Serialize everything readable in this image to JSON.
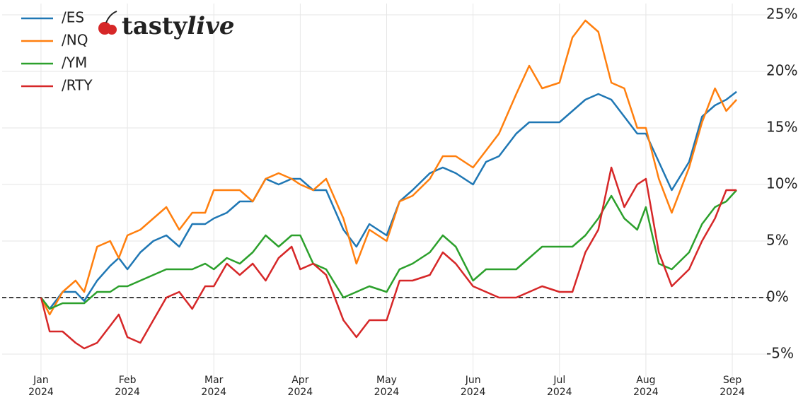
{
  "chart_data": {
    "type": "line",
    "logo": [
      "tasty",
      "live"
    ],
    "x": [
      0,
      0.1,
      0.25,
      0.4,
      0.5,
      0.65,
      0.8,
      0.9,
      1.0,
      1.15,
      1.3,
      1.45,
      1.6,
      1.75,
      1.9,
      2.0,
      2.15,
      2.3,
      2.45,
      2.6,
      2.75,
      2.9,
      3.0,
      3.15,
      3.3,
      3.5,
      3.65,
      3.8,
      4.0,
      4.15,
      4.3,
      4.5,
      4.65,
      4.8,
      5.0,
      5.15,
      5.3,
      5.5,
      5.65,
      5.8,
      6.0,
      6.15,
      6.3,
      6.45,
      6.6,
      6.75,
      6.9,
      7.0,
      7.15,
      7.3,
      7.5,
      7.65,
      7.8,
      7.93,
      8.05
    ],
    "series": [
      {
        "name": "/ES",
        "color": "#1f77b4",
        "values": [
          0,
          -1,
          0.5,
          0.5,
          -0.3,
          1.5,
          2.8,
          3.5,
          2.5,
          4,
          5,
          5.5,
          4.5,
          6.5,
          6.5,
          7,
          7.5,
          8.5,
          8.5,
          10.5,
          10,
          10.5,
          10.5,
          9.5,
          9.5,
          6,
          4.5,
          6.5,
          5.5,
          8.5,
          9.5,
          11,
          11.5,
          11,
          10,
          12,
          12.5,
          14.5,
          15.5,
          15.5,
          15.5,
          16.5,
          17.5,
          18,
          17.5,
          16,
          14.5,
          14.5,
          12,
          9.5,
          12,
          16,
          17,
          17.5,
          18.2
        ]
      },
      {
        "name": "/NQ",
        "color": "#ff7f0e",
        "values": [
          0,
          -1.5,
          0.5,
          1.5,
          0.5,
          4.5,
          5,
          3.5,
          5.5,
          6,
          7,
          8,
          6,
          7.5,
          7.5,
          9.5,
          9.5,
          9.5,
          8.5,
          10.5,
          11,
          10.5,
          10,
          9.5,
          10.5,
          7,
          3,
          6,
          5,
          8.5,
          9,
          10.5,
          12.5,
          12.5,
          11.5,
          13,
          14.5,
          18,
          20.5,
          18.5,
          19,
          23,
          24.5,
          23.5,
          19,
          18.5,
          15,
          15,
          10.5,
          7.5,
          11.5,
          15.5,
          18.5,
          16.5,
          17.5
        ]
      },
      {
        "name": "/YM",
        "color": "#2ca02c",
        "values": [
          0,
          -1,
          -0.5,
          -0.5,
          -0.5,
          0.5,
          0.5,
          1,
          1,
          1.5,
          2,
          2.5,
          2.5,
          2.5,
          3,
          2.5,
          3.5,
          3,
          4,
          5.5,
          4.5,
          5.5,
          5.5,
          3,
          2.5,
          0,
          0.5,
          1,
          0.5,
          2.5,
          3,
          4,
          5.5,
          4.5,
          1.5,
          2.5,
          2.5,
          2.5,
          3.5,
          4.5,
          4.5,
          4.5,
          5.5,
          7,
          9,
          7,
          6,
          8,
          3,
          2.5,
          4,
          6.5,
          8,
          8.5,
          9.5
        ]
      },
      {
        "name": "/RTY",
        "color": "#d62728",
        "values": [
          0,
          -3,
          -3,
          -4,
          -4.5,
          -4,
          -2.5,
          -1.5,
          -3.5,
          -4,
          -2,
          0,
          0.5,
          -1,
          1,
          1,
          3,
          2,
          3,
          1.5,
          3.5,
          4.5,
          2.5,
          3,
          2,
          -2,
          -3.5,
          -2,
          -2,
          1.5,
          1.5,
          2,
          4,
          3,
          1,
          0.5,
          0,
          0,
          0.5,
          1,
          0.5,
          0.5,
          4,
          6,
          11.5,
          8,
          10,
          10.5,
          4,
          1,
          2.5,
          5,
          7,
          9.5,
          9.5
        ]
      }
    ],
    "xlim": [
      -0.45,
      8.45
    ],
    "xticks": [
      {
        "value": 0,
        "label": [
          "Jan",
          "2024"
        ]
      },
      {
        "value": 1,
        "label": [
          "Feb",
          "2024"
        ]
      },
      {
        "value": 2,
        "label": [
          "Mar",
          "2024"
        ]
      },
      {
        "value": 3,
        "label": [
          "Apr",
          "2024"
        ]
      },
      {
        "value": 4,
        "label": [
          "May",
          "2024"
        ]
      },
      {
        "value": 5,
        "label": [
          "Jun",
          "2024"
        ]
      },
      {
        "value": 6,
        "label": [
          "Jul",
          "2024"
        ]
      },
      {
        "value": 7,
        "label": [
          "Aug",
          "2024"
        ]
      },
      {
        "value": 8,
        "label": [
          "Sep",
          "2024"
        ]
      }
    ],
    "ylim": [
      -7,
      26
    ],
    "yticks": [
      {
        "value": -5,
        "label": "-5%"
      },
      {
        "value": 0,
        "label": "0%"
      },
      {
        "value": 5,
        "label": "5%"
      },
      {
        "value": 10,
        "label": "10%"
      },
      {
        "value": 15,
        "label": "15%"
      },
      {
        "value": 20,
        "label": "20%"
      },
      {
        "value": 25,
        "label": "25%"
      }
    ],
    "hline": 0,
    "grid": true,
    "legend": "upper-left"
  }
}
